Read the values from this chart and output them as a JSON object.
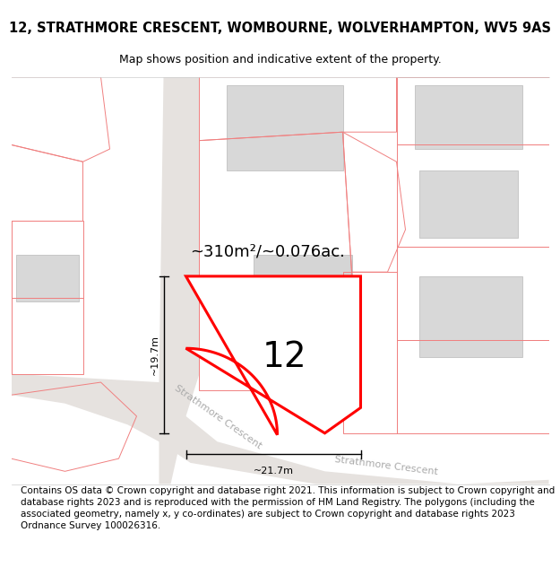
{
  "title_line1": "12, STRATHMORE CRESCENT, WOMBOURNE, WOLVERHAMPTON, WV5 9AS",
  "title_line2": "Map shows position and indicative extent of the property.",
  "footer_text": "Contains OS data © Crown copyright and database right 2021. This information is subject to Crown copyright and database rights 2023 and is reproduced with the permission of HM Land Registry. The polygons (including the associated geometry, namely x, y co-ordinates) are subject to Crown copyright and database rights 2023 Ordnance Survey 100026316.",
  "area_label": "~310m²/~0.076ac.",
  "number_label": "12",
  "width_label": "~21.7m",
  "height_label": "~19.7m",
  "road_label_diag": "Strathmore Crescent",
  "road_label_bottom": "Strathmore Crescent",
  "map_bg": "#f2f0ef",
  "building_fill": "#d8d8d8",
  "building_edge": "#c0c0c0",
  "highlight_fill": "#ffffff",
  "highlight_edge": "#ff0000",
  "other_plot_edge": "#f08080",
  "title_fontsize": 10.5,
  "subtitle_fontsize": 9,
  "footer_fontsize": 7.5
}
